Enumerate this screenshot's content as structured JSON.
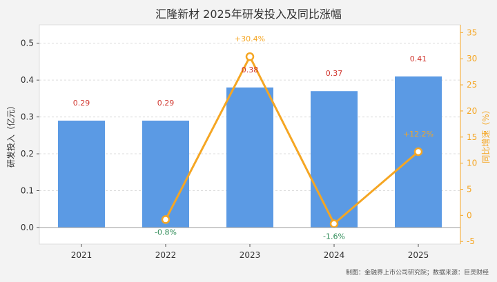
{
  "title": "汇隆新材 2025年研发投入及同比涨幅",
  "footer": "制图：金融界上市公司研究院；数据来源：巨灵财经",
  "colors": {
    "bar": "#5b9ae4",
    "line": "#f5a623",
    "bar_label": "#d0342c",
    "neg_label": "#2e8b57",
    "pos_label": "#f5a623"
  },
  "chart_data": {
    "type": "bar",
    "categories": [
      "2021",
      "2022",
      "2023",
      "2024",
      "2025"
    ],
    "series": [
      {
        "type": "bar",
        "axis": "left",
        "values": [
          0.29,
          0.29,
          0.38,
          0.37,
          0.41
        ]
      },
      {
        "type": "line",
        "axis": "right",
        "values": [
          null,
          -0.8,
          30.4,
          -1.6,
          12.2
        ]
      }
    ],
    "bar_labels": [
      "0.29",
      "0.29",
      "0.38",
      "0.37",
      "0.41"
    ],
    "line_labels": [
      "",
      "-0.8%",
      "+30.4%",
      "-1.6%",
      "+12.2%"
    ],
    "ylabel": "研发投入（亿元）",
    "y2label": "同比增速（%）",
    "ylim": [
      -0.045,
      0.55
    ],
    "y2lim": [
      -5.5,
      36.5
    ],
    "yticks": [
      "0.0",
      "0.1",
      "0.2",
      "0.3",
      "0.4",
      "0.5"
    ],
    "y2ticks": [
      "-5",
      "0",
      "5",
      "10",
      "15",
      "20",
      "25",
      "30",
      "35"
    ],
    "grid": true
  }
}
